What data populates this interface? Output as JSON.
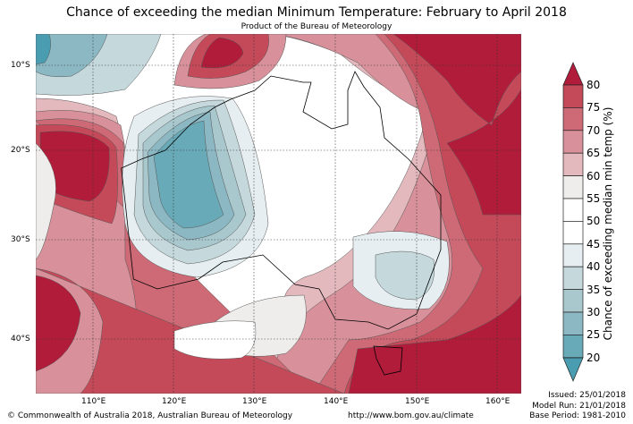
{
  "title": "Chance of exceeding the median Minimum Temperature: February to April 2018",
  "subtitle": "Product of the Bureau of Meteorology",
  "lat_labels": [
    "10°S",
    "20°S",
    "30°S",
    "40°S"
  ],
  "lon_labels": [
    "110°E",
    "120°E",
    "130°E",
    "140°E",
    "150°E",
    "160°E"
  ],
  "colorbar": {
    "label": "Chance of exceeding median min temp (%)",
    "ticks": [
      "80",
      "75",
      "70",
      "65",
      "60",
      "55",
      "50",
      "45",
      "40",
      "35",
      "30",
      "25",
      "20"
    ],
    "colors": {
      ">80": "#b11c3b",
      "75-80": "#c44a59",
      "70-75": "#cd6a76",
      "65-70": "#d8919b",
      "60-65": "#e4b9be",
      "55-60": "#efedeb",
      "50-55": "#ffffff",
      "45-50": "#ffffff",
      "40-45": "#e7eef1",
      "35-40": "#c5d9dd",
      "30-35": "#a9c8ce",
      "25-30": "#8bb8c3",
      "20-25": "#69aab8",
      "<20": "#4a9db0"
    }
  },
  "footer": {
    "copyright": "© Commonwealth of Australia 2018, Australian Bureau of Meteorology",
    "url": "http://www.bom.gov.au/climate",
    "issued": "Issued: 25/01/2018",
    "model_run": "Model Run: 21/01/2018",
    "base_period": "Base Period: 1981-2010"
  }
}
